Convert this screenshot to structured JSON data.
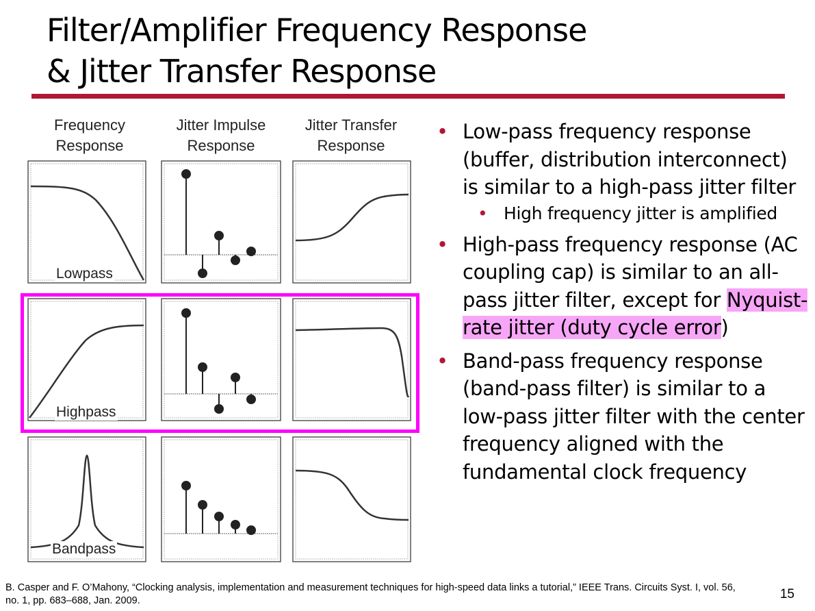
{
  "title": {
    "line1": "Filter/Amplifier Frequency Response",
    "line2": "& Jitter Transfer Response"
  },
  "columns": [
    "Frequency\nResponse",
    "Jitter Impulse\nResponse",
    "Jitter Transfer\nResponse"
  ],
  "rows": [
    {
      "label": "Lowpass",
      "highlighted": false
    },
    {
      "label": "Highpass",
      "highlighted": true
    },
    {
      "label": "Bandpass",
      "highlighted": false
    }
  ],
  "colors": {
    "accent": "#b01736",
    "highlight": "#ff00ff",
    "text_highlight": "#f7a6f7"
  },
  "bullets": [
    {
      "text": "Low-pass frequency response (buffer, distribution interconnect) is similar to a high-pass jitter filter",
      "sub": [
        "High frequency jitter is amplified"
      ]
    },
    {
      "text_before": "High-pass frequency response (AC coupling cap) is similar to an all-pass jitter filter, except for ",
      "text_highlight": "Nyquist-rate jitter (duty cycle error",
      "text_after": ")"
    },
    {
      "text": "Band-pass frequency response (band-pass filter) is similar to a low-pass jitter filter with the center frequency aligned with the fundamental clock frequency"
    }
  ],
  "citation": "B. Casper and F. O’Mahony, “Clocking analysis, implementation and measurement techniques for high-speed data links a tutorial,” IEEE Trans. Circuits Syst. I, vol. 56, no. 1, pp. 683–688, Jan. 2009.",
  "page_number": "15"
}
